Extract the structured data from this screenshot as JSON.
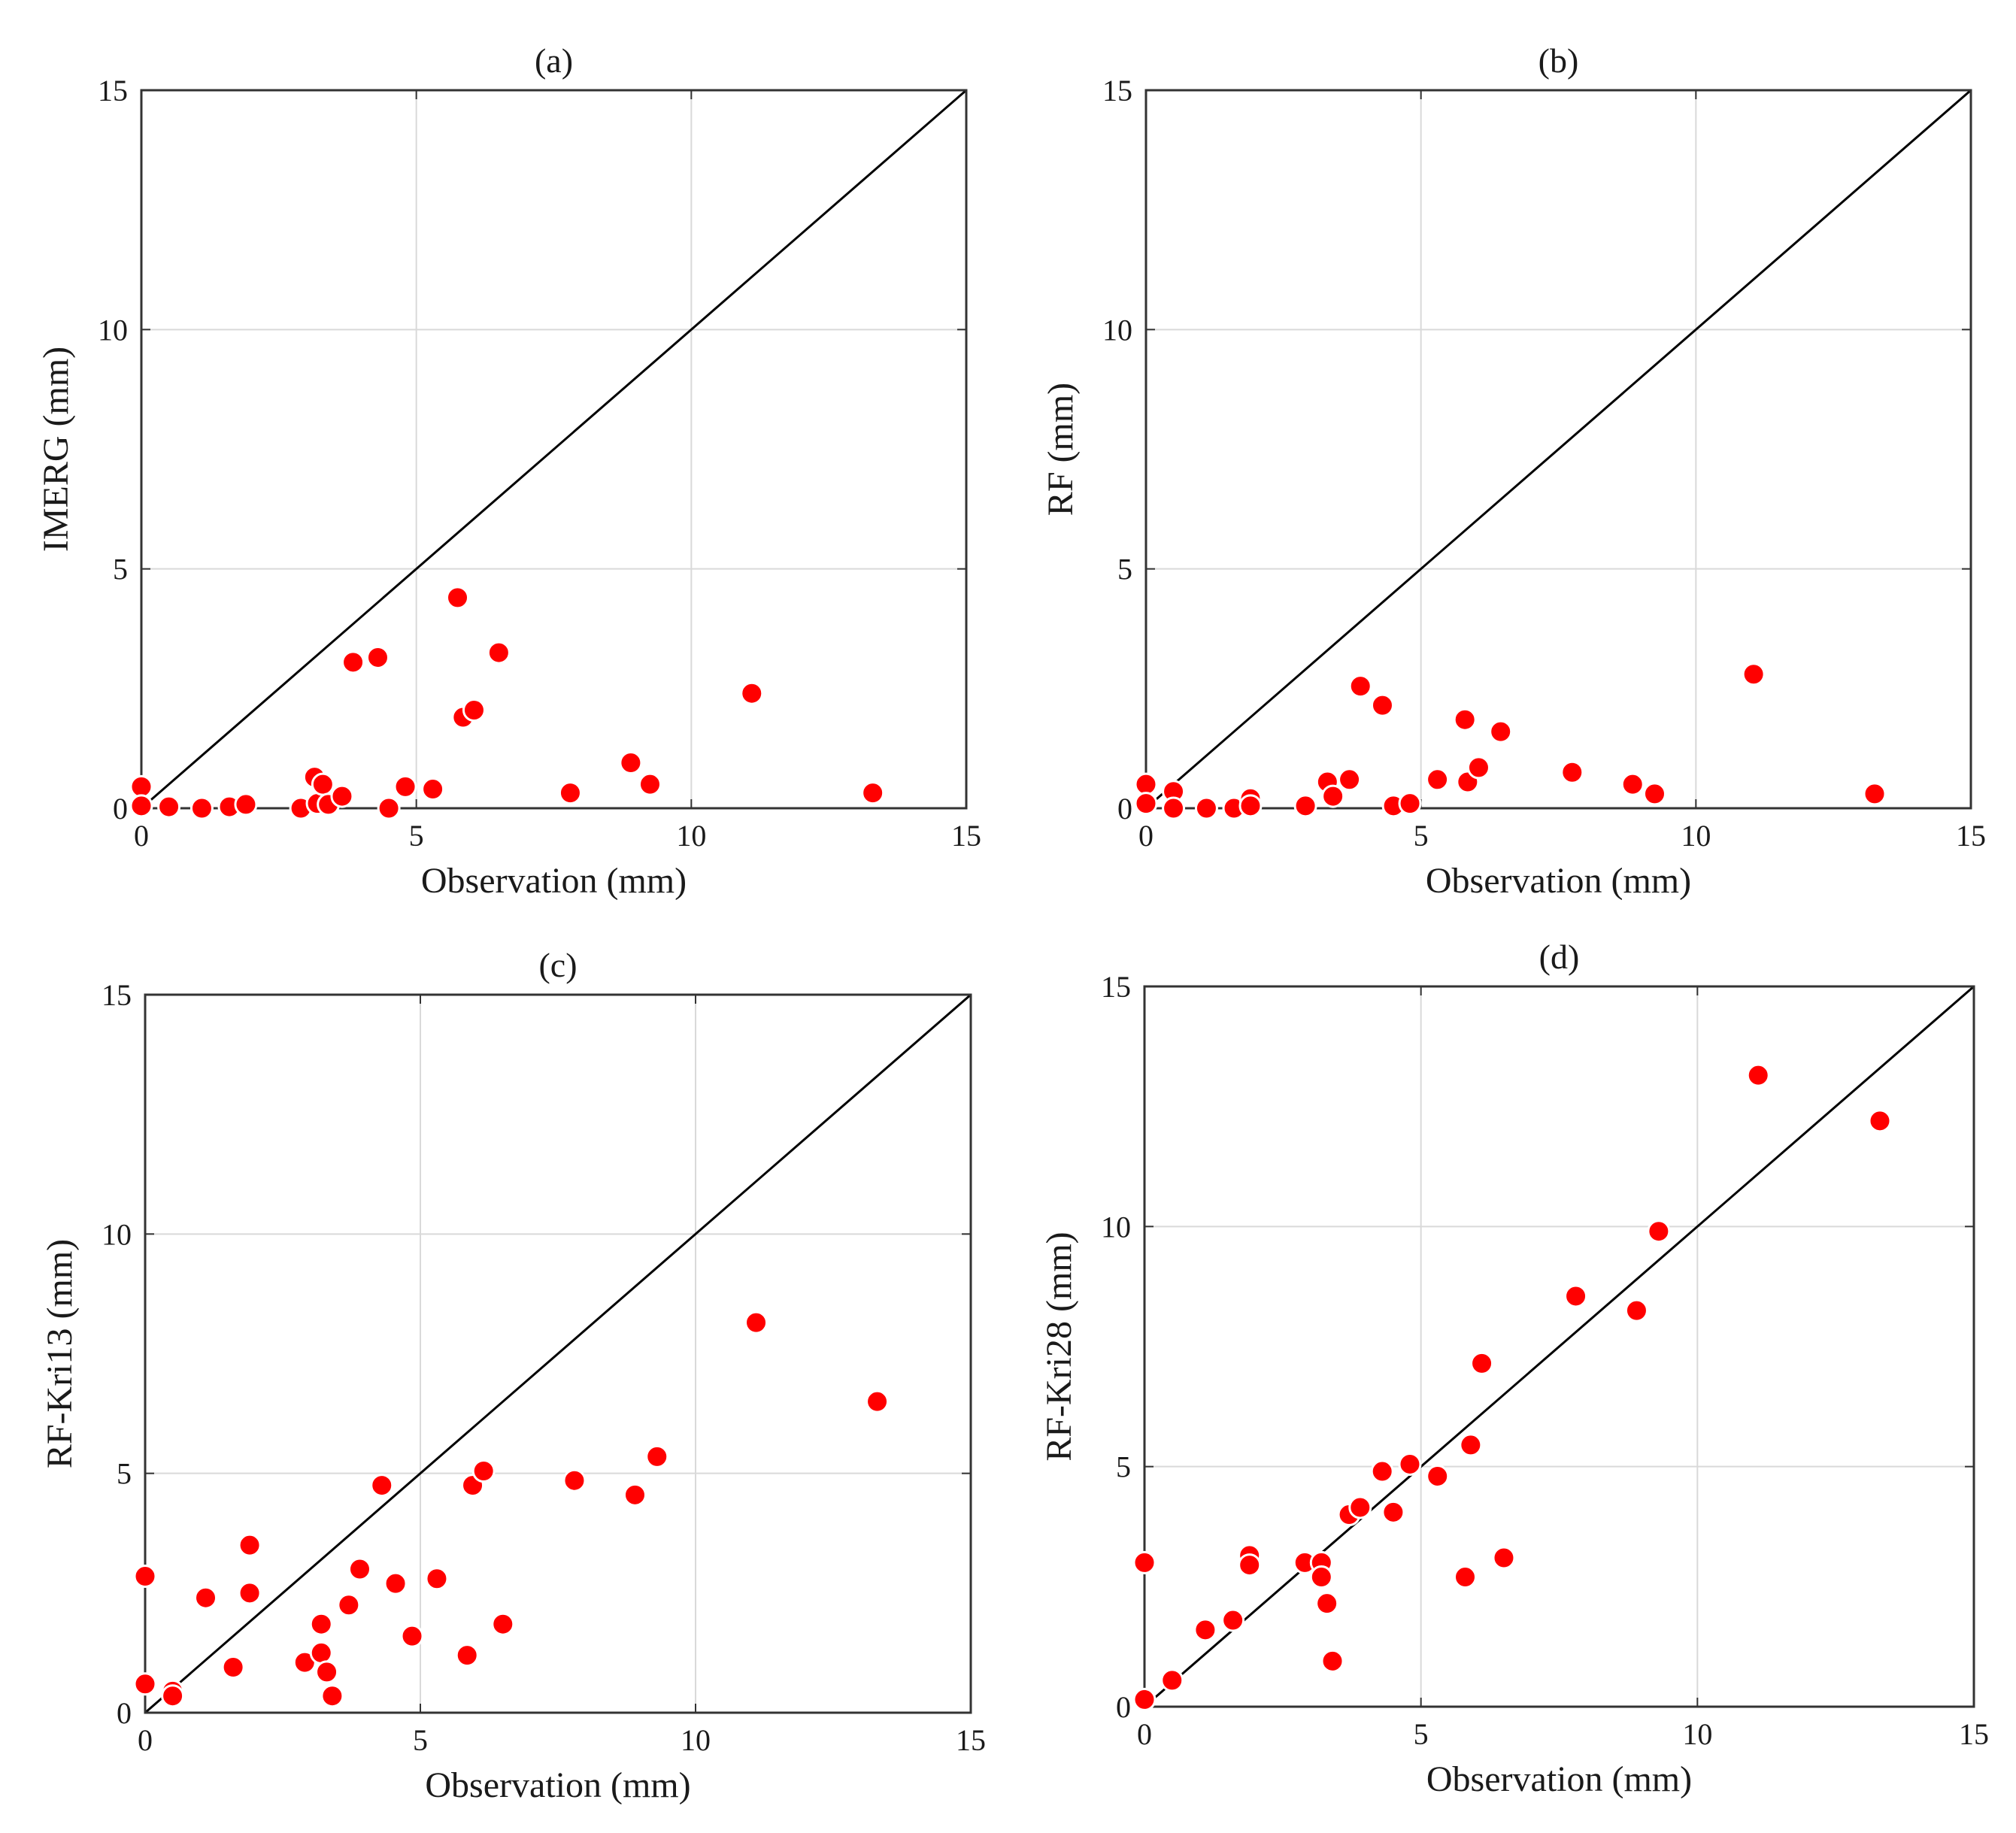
{
  "figure": {
    "marker_color": "#ff0000",
    "marker_edge_color": "#ffffff",
    "line_color": "#000000",
    "grid_color": "#d9d9d9"
  },
  "chart_data": [
    {
      "type": "scatter",
      "title": "(a)",
      "xlabel": "Observation (mm)",
      "ylabel": "IMERG (mm)",
      "xlim": [
        0,
        15
      ],
      "ylim": [
        0,
        15
      ],
      "xticks": [
        "0",
        "5",
        "10",
        "15"
      ],
      "yticks": [
        "0",
        "5",
        "10",
        "15"
      ],
      "grid": true,
      "reference_line": "1:1",
      "points": [
        [
          0,
          0.45
        ],
        [
          0,
          0.05
        ],
        [
          0.5,
          0.03
        ],
        [
          1.1,
          0
        ],
        [
          1.6,
          0.03
        ],
        [
          1.9,
          0.08
        ],
        [
          2.9,
          0
        ],
        [
          3.15,
          0.65
        ],
        [
          3.2,
          0.1
        ],
        [
          3.3,
          0.5
        ],
        [
          3.4,
          0.08
        ],
        [
          3.65,
          0.25
        ],
        [
          3.85,
          3.05
        ],
        [
          4.3,
          3.15
        ],
        [
          4.5,
          0
        ],
        [
          4.8,
          0.45
        ],
        [
          5.3,
          0.4
        ],
        [
          5.75,
          4.4
        ],
        [
          5.85,
          1.9
        ],
        [
          6.05,
          2.05
        ],
        [
          6.5,
          3.25
        ],
        [
          7.8,
          0.32
        ],
        [
          8.9,
          0.95
        ],
        [
          9.25,
          0.5
        ],
        [
          11.1,
          2.4
        ],
        [
          13.3,
          0.32
        ]
      ]
    },
    {
      "type": "scatter",
      "title": "(b)",
      "xlabel": "Observation (mm)",
      "ylabel": "RF (mm)",
      "xlim": [
        0,
        15
      ],
      "ylim": [
        0,
        15
      ],
      "xticks": [
        "0",
        "5",
        "10",
        "15"
      ],
      "yticks": [
        "0",
        "5",
        "10",
        "15"
      ],
      "grid": true,
      "reference_line": "1:1",
      "points": [
        [
          0,
          0.5
        ],
        [
          0,
          0.1
        ],
        [
          0.5,
          0.35
        ],
        [
          0.5,
          0
        ],
        [
          1.1,
          0
        ],
        [
          1.6,
          0
        ],
        [
          1.9,
          0.2
        ],
        [
          1.9,
          0.05
        ],
        [
          2.9,
          0.05
        ],
        [
          3.3,
          0.55
        ],
        [
          3.4,
          0.25
        ],
        [
          3.7,
          0.6
        ],
        [
          3.9,
          2.55
        ],
        [
          4.3,
          2.15
        ],
        [
          4.5,
          0.05
        ],
        [
          4.8,
          0.1
        ],
        [
          5.3,
          0.6
        ],
        [
          5.8,
          1.85
        ],
        [
          5.85,
          0.55
        ],
        [
          6.05,
          0.85
        ],
        [
          6.45,
          1.6
        ],
        [
          7.75,
          0.75
        ],
        [
          8.85,
          0.5
        ],
        [
          9.25,
          0.3
        ],
        [
          11.05,
          2.8
        ],
        [
          13.25,
          0.3
        ]
      ]
    },
    {
      "type": "scatter",
      "title": "(c)",
      "xlabel": "Observation (mm)",
      "ylabel": "RF-Kri13 (mm)",
      "xlim": [
        0,
        15
      ],
      "ylim": [
        0,
        15
      ],
      "xticks": [
        "0",
        "5",
        "10",
        "15"
      ],
      "yticks": [
        "0",
        "5",
        "10",
        "15"
      ],
      "grid": true,
      "reference_line": "1:1",
      "points": [
        [
          0,
          2.85
        ],
        [
          0,
          0.6
        ],
        [
          0.5,
          0.45
        ],
        [
          0.5,
          0.35
        ],
        [
          1.1,
          2.4
        ],
        [
          1.6,
          0.95
        ],
        [
          1.9,
          3.5
        ],
        [
          1.9,
          2.5
        ],
        [
          2.9,
          1.05
        ],
        [
          3.2,
          1.85
        ],
        [
          3.2,
          1.25
        ],
        [
          3.3,
          0.85
        ],
        [
          3.4,
          0.35
        ],
        [
          3.7,
          2.25
        ],
        [
          3.9,
          3.0
        ],
        [
          4.3,
          4.75
        ],
        [
          4.55,
          2.7
        ],
        [
          4.85,
          1.6
        ],
        [
          5.3,
          2.8
        ],
        [
          5.85,
          1.2
        ],
        [
          5.95,
          4.75
        ],
        [
          6.15,
          5.05
        ],
        [
          6.5,
          1.85
        ],
        [
          7.8,
          4.85
        ],
        [
          8.9,
          4.55
        ],
        [
          9.3,
          5.35
        ],
        [
          11.1,
          8.15
        ],
        [
          13.3,
          6.5
        ]
      ]
    },
    {
      "type": "scatter",
      "title": "(d)",
      "xlabel": "Observation (mm)",
      "ylabel": "RF-Kri28 (mm)",
      "xlim": [
        0,
        15
      ],
      "ylim": [
        0,
        15
      ],
      "xticks": [
        "0",
        "5",
        "10",
        "15"
      ],
      "yticks": [
        "0",
        "5",
        "10",
        "15"
      ],
      "grid": true,
      "reference_line": "1:1",
      "points": [
        [
          0,
          3.0
        ],
        [
          0,
          0.15
        ],
        [
          0.5,
          0.55
        ],
        [
          1.1,
          1.6
        ],
        [
          1.6,
          1.8
        ],
        [
          1.9,
          3.15
        ],
        [
          1.9,
          2.95
        ],
        [
          2.9,
          3.0
        ],
        [
          3.2,
          3.0
        ],
        [
          3.2,
          2.7
        ],
        [
          3.3,
          2.15
        ],
        [
          3.4,
          0.95
        ],
        [
          3.7,
          4.0
        ],
        [
          3.9,
          4.15
        ],
        [
          4.3,
          4.9
        ],
        [
          4.5,
          4.05
        ],
        [
          4.8,
          5.05
        ],
        [
          5.3,
          4.8
        ],
        [
          5.8,
          2.7
        ],
        [
          5.9,
          5.45
        ],
        [
          6.1,
          7.15
        ],
        [
          6.5,
          3.1
        ],
        [
          7.8,
          8.55
        ],
        [
          8.9,
          8.25
        ],
        [
          9.3,
          9.9
        ],
        [
          11.1,
          13.15
        ],
        [
          13.3,
          12.2
        ]
      ]
    }
  ]
}
